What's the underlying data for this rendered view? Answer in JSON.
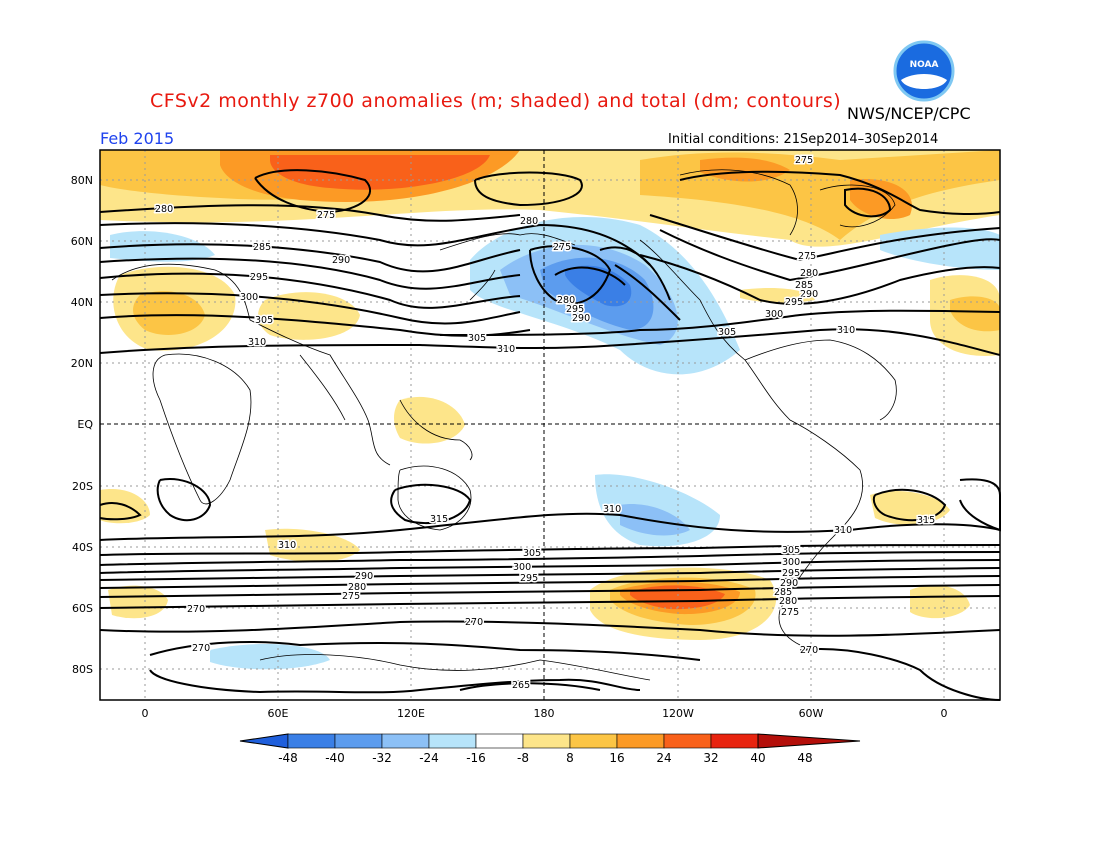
{
  "header": {
    "title": "CFSv2 monthly z700 anomalies (m; shaded) and total (dm; contours)",
    "agency": "NWS/NCEP/CPC",
    "month": "Feb 2015",
    "initial_conditions": "Initial conditions: 21Sep2014–30Sep2014",
    "logo_text": "NOAA"
  },
  "axes": {
    "lat_labels": [
      "80N",
      "60N",
      "40N",
      "20N",
      "EQ",
      "20S",
      "40S",
      "60S",
      "80S"
    ],
    "lon_labels": [
      "0",
      "60E",
      "120E",
      "180",
      "120W",
      "60W",
      "0"
    ]
  },
  "colorbar": {
    "ticks": [
      "-48",
      "-40",
      "-32",
      "-24",
      "-16",
      "-8",
      "8",
      "16",
      "24",
      "32",
      "40",
      "48"
    ],
    "colors": [
      "#1f5fdc",
      "#3a7fe6",
      "#5c9cee",
      "#8cc0f6",
      "#b7e4fa",
      "#ffffff",
      "#fde58a",
      "#fcc545",
      "#fc9a25",
      "#f9611a",
      "#e8240f",
      "#b40f0a"
    ]
  },
  "contour_labels": [
    "275",
    "275",
    "280",
    "280",
    "285",
    "290",
    "295",
    "300",
    "305",
    "310",
    "275",
    "280",
    "295",
    "290",
    "305",
    "310",
    "275",
    "280",
    "285",
    "290",
    "295",
    "300",
    "305",
    "310",
    "315",
    "310",
    "305",
    "300",
    "295",
    "290",
    "280",
    "275",
    "270",
    "270",
    "270",
    "265",
    "310",
    "310",
    "315",
    "305",
    "300",
    "295",
    "290",
    "285",
    "280",
    "275",
    "270"
  ],
  "colors": {
    "title": "#e8190f",
    "month": "#1f43ee",
    "contour": "#000000"
  }
}
